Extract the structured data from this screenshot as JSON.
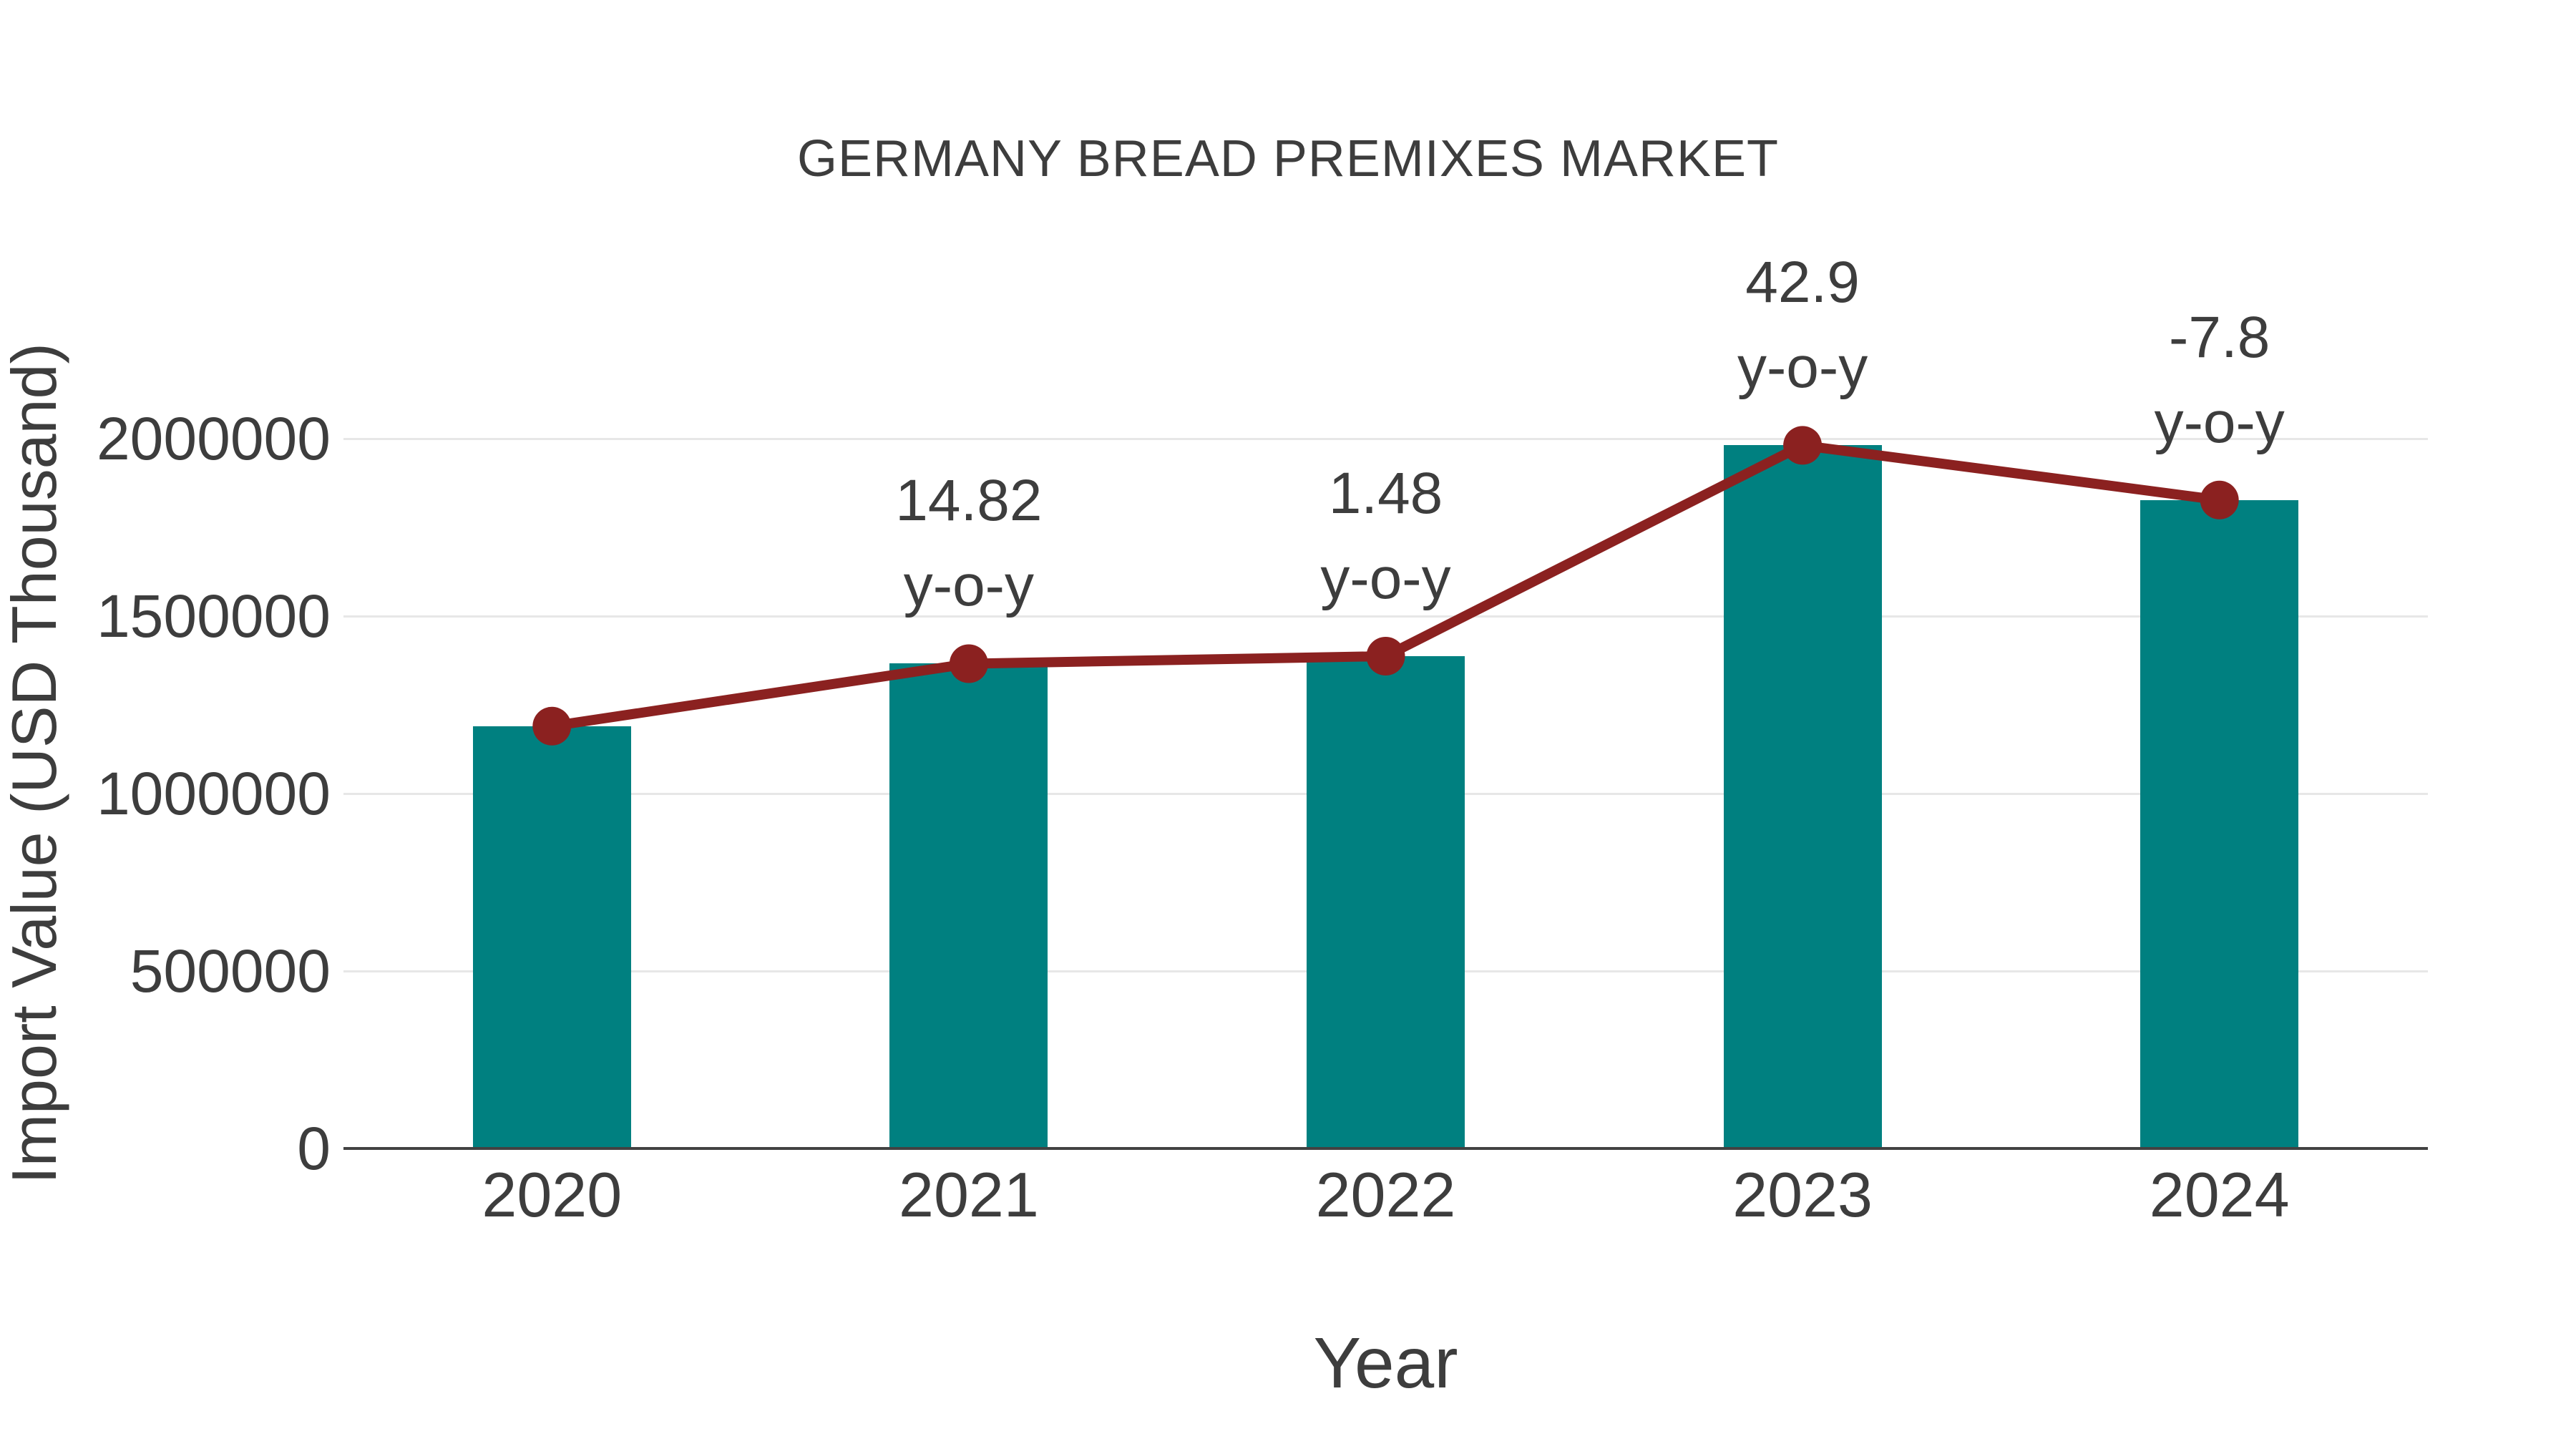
{
  "chart_data": {
    "type": "bar",
    "subtype": "bar-with-line-overlay",
    "title": "GERMANY BREAD PREMIXES MARKET",
    "xlabel": "Year",
    "ylabel": "Import Value (USD Thousand)",
    "categories": [
      "2020",
      "2021",
      "2022",
      "2023",
      "2024"
    ],
    "series": [
      {
        "name": "Import Value",
        "type": "bar",
        "values": [
          1190000,
          1366000,
          1387000,
          1981000,
          1827000
        ]
      },
      {
        "name": "Import Value trend (markers)",
        "type": "line",
        "values": [
          1190000,
          1366000,
          1387000,
          1981000,
          1827000
        ]
      }
    ],
    "yoy_percent": [
      null,
      14.82,
      1.48,
      42.9,
      -7.8
    ],
    "annotations": [
      {
        "category": "2021",
        "line1": "14.82",
        "line2": "y-o-y"
      },
      {
        "category": "2022",
        "line1": "1.48",
        "line2": "y-o-y"
      },
      {
        "category": "2023",
        "line1": "42.9",
        "line2": "y-o-y"
      },
      {
        "category": "2024",
        "line1": "-7.8",
        "line2": "y-o-y"
      }
    ],
    "y_ticks": [
      0,
      500000,
      1000000,
      1500000,
      2000000
    ],
    "y_tick_labels": [
      "0",
      "500000",
      "1000000",
      "1500000",
      "2000000"
    ],
    "ylim": [
      0,
      2075000
    ],
    "grid": "horizontal",
    "legend_position": "none"
  },
  "colors": {
    "bar_fill": "#008080",
    "line_stroke": "#8b2120",
    "marker_fill": "#8b2120",
    "gridline": "#e7e7e7",
    "axis_line": "#424242",
    "text": "#3d3d3d",
    "background": "#ffffff"
  }
}
